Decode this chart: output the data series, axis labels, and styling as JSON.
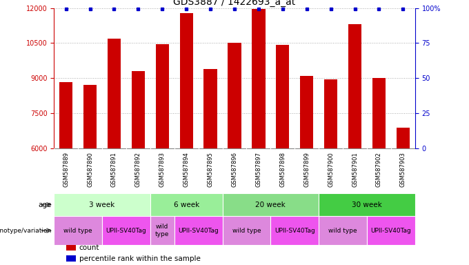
{
  "title": "GDS3887 / 1422693_a_at",
  "samples": [
    "GSM587889",
    "GSM587890",
    "GSM587891",
    "GSM587892",
    "GSM587893",
    "GSM587894",
    "GSM587895",
    "GSM587896",
    "GSM587897",
    "GSM587898",
    "GSM587899",
    "GSM587900",
    "GSM587901",
    "GSM587902",
    "GSM587903"
  ],
  "counts": [
    8820,
    8720,
    10700,
    9300,
    10450,
    11780,
    9400,
    10520,
    11950,
    10430,
    9100,
    8950,
    11300,
    9000,
    6900
  ],
  "ylim": [
    6000,
    12000
  ],
  "yticks_left": [
    6000,
    7500,
    9000,
    10500,
    12000
  ],
  "yticks_right": [
    0,
    25,
    50,
    75,
    100
  ],
  "right_yticklabels": [
    "0",
    "25",
    "50",
    "75",
    "100%"
  ],
  "bar_color": "#cc0000",
  "percentile_color": "#0000cc",
  "bg_color": "#ffffff",
  "sample_bg": "#cccccc",
  "age_groups": [
    {
      "label": "3 week",
      "start": 0,
      "end": 4,
      "color": "#ccffcc"
    },
    {
      "label": "6 week",
      "start": 4,
      "end": 7,
      "color": "#99ee99"
    },
    {
      "label": "20 week",
      "start": 7,
      "end": 11,
      "color": "#88dd88"
    },
    {
      "label": "30 week",
      "start": 11,
      "end": 15,
      "color": "#44cc44"
    }
  ],
  "genotype_groups": [
    {
      "label": "wild type",
      "start": 0,
      "end": 2,
      "color": "#dd88dd"
    },
    {
      "label": "UPII-SV40Tag",
      "start": 2,
      "end": 4,
      "color": "#ee55ee"
    },
    {
      "label": "wild\ntype",
      "start": 4,
      "end": 5,
      "color": "#dd88dd"
    },
    {
      "label": "UPII-SV40Tag",
      "start": 5,
      "end": 7,
      "color": "#ee55ee"
    },
    {
      "label": "wild type",
      "start": 7,
      "end": 9,
      "color": "#dd88dd"
    },
    {
      "label": "UPII-SV40Tag",
      "start": 9,
      "end": 11,
      "color": "#ee55ee"
    },
    {
      "label": "wild type",
      "start": 11,
      "end": 13,
      "color": "#dd88dd"
    },
    {
      "label": "UPII-SV40Tag",
      "start": 13,
      "end": 15,
      "color": "#ee55ee"
    }
  ],
  "legend_items": [
    {
      "label": "count",
      "color": "#cc0000"
    },
    {
      "label": "percentile rank within the sample",
      "color": "#0000cc"
    }
  ],
  "title_fontsize": 10,
  "tick_fontsize": 7,
  "sample_fontsize": 6,
  "annot_fontsize": 7.5,
  "legend_fontsize": 7.5
}
